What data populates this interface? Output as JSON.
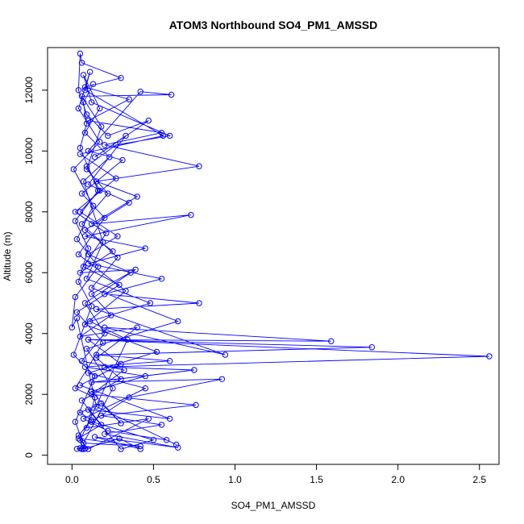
{
  "chart_data": {
    "type": "line",
    "title": "ATOM3 Northbound SO4_PM1_AMSSD",
    "xlabel": "SO4_PM1_AMSSD",
    "ylabel": "Altitude (m)",
    "xlim": [
      -0.15,
      2.62
    ],
    "ylim": [
      -300,
      13400
    ],
    "xticks": [
      0.0,
      0.5,
      1.0,
      1.5,
      2.0,
      2.5
    ],
    "xtick_labels": [
      "0.0",
      "0.5",
      "1.0",
      "1.5",
      "2.0",
      "2.5"
    ],
    "yticks": [
      0,
      2000,
      4000,
      6000,
      8000,
      10000,
      12000
    ],
    "ytick_labels": [
      "0",
      "2000",
      "4000",
      "6000",
      "8000",
      "10000",
      "12000"
    ],
    "series": [
      {
        "color": "#0000ff",
        "marker": "open-circle",
        "points": [
          [
            0.06,
            200
          ],
          [
            0.03,
            210
          ],
          [
            0.05,
            230
          ],
          [
            0.08,
            220
          ],
          [
            0.07,
            200
          ],
          [
            0.04,
            650
          ],
          [
            0.12,
            1150
          ],
          [
            0.05,
            1400
          ],
          [
            0.18,
            1700
          ],
          [
            0.3,
            1050
          ],
          [
            0.12,
            2100
          ],
          [
            0.45,
            2600
          ],
          [
            0.08,
            2900
          ],
          [
            0.6,
            3100
          ],
          [
            0.15,
            3300
          ],
          [
            1.84,
            3550
          ],
          [
            0.1,
            3800
          ],
          [
            2.56,
            3250
          ],
          [
            0.2,
            2900
          ],
          [
            0.75,
            2800
          ],
          [
            0.12,
            2400
          ],
          [
            0.92,
            2500
          ],
          [
            0.35,
            1900
          ],
          [
            0.12,
            1100
          ],
          [
            0.5,
            500
          ],
          [
            0.3,
            200
          ],
          [
            0.1,
            1500
          ],
          [
            0.6,
            1200
          ],
          [
            0.05,
            2300
          ],
          [
            0.3,
            3000
          ],
          [
            0.1,
            3800
          ],
          [
            1.59,
            3750
          ],
          [
            0.2,
            4200
          ],
          [
            0.94,
            3300
          ],
          [
            0.15,
            4800
          ],
          [
            0.78,
            5000
          ],
          [
            0.2,
            5300
          ],
          [
            0.55,
            5800
          ],
          [
            0.1,
            6300
          ],
          [
            0.45,
            6800
          ],
          [
            0.08,
            7200
          ],
          [
            0.73,
            7900
          ],
          [
            0.12,
            7600
          ],
          [
            0.4,
            8500
          ],
          [
            0.15,
            9000
          ],
          [
            0.78,
            9500
          ],
          [
            0.2,
            10200
          ],
          [
            0.55,
            10600
          ],
          [
            0.1,
            11000
          ],
          [
            0.35,
            11700
          ],
          [
            0.08,
            12100
          ],
          [
            0.3,
            12400
          ],
          [
            0.06,
            12900
          ],
          [
            0.05,
            13200
          ],
          [
            0.04,
            12000
          ],
          [
            0.09,
            11200
          ],
          [
            0.22,
            10500
          ],
          [
            0.47,
            11000
          ],
          [
            0.14,
            9800
          ],
          [
            0.33,
            10500
          ],
          [
            0.1,
            8900
          ],
          [
            0.35,
            8300
          ],
          [
            0.08,
            7400
          ],
          [
            0.25,
            6700
          ],
          [
            0.05,
            6000
          ],
          [
            0.39,
            6100
          ],
          [
            0.12,
            5300
          ],
          [
            0.24,
            4600
          ],
          [
            0.05,
            3900
          ],
          [
            0.4,
            4200
          ],
          [
            0.15,
            3200
          ],
          [
            0.3,
            2500
          ],
          [
            0.06,
            1800
          ],
          [
            0.18,
            1000
          ],
          [
            0.04,
            550
          ],
          [
            0.42,
            300
          ],
          [
            0.07,
            400
          ],
          [
            0.25,
            2200
          ],
          [
            0.09,
            3500
          ],
          [
            0.65,
            4400
          ],
          [
            0.12,
            5500
          ],
          [
            0.28,
            6500
          ],
          [
            0.06,
            7600
          ],
          [
            0.22,
            8600
          ],
          [
            0.09,
            9400
          ],
          [
            0.18,
            10800
          ],
          [
            0.06,
            11800
          ],
          [
            0.61,
            11850
          ],
          [
            0.42,
            11950
          ],
          [
            0.1,
            10000
          ],
          [
            0.31,
            9700
          ],
          [
            0.06,
            8600
          ],
          [
            0.2,
            7800
          ],
          [
            0.04,
            6600
          ],
          [
            0.33,
            5400
          ],
          [
            0.08,
            4300
          ],
          [
            0.52,
            3400
          ],
          [
            0.1,
            2700
          ],
          [
            0.45,
            2200
          ],
          [
            0.07,
            1200
          ],
          [
            0.22,
            800
          ],
          [
            0.58,
            500
          ],
          [
            0.64,
            350
          ],
          [
            0.15,
            1600
          ],
          [
            0.03,
            4500
          ],
          [
            0.0,
            4200
          ],
          [
            0.02,
            5200
          ],
          [
            0.16,
            6200
          ],
          [
            0.03,
            7100
          ],
          [
            0.13,
            8200
          ],
          [
            0.01,
            9400
          ],
          [
            0.17,
            10300
          ],
          [
            0.04,
            11400
          ],
          [
            0.11,
            12600
          ],
          [
            0.08,
            12000
          ],
          [
            0.56,
            10500
          ],
          [
            0.05,
            9900
          ],
          [
            0.27,
            9100
          ],
          [
            0.02,
            8000
          ],
          [
            0.21,
            7300
          ],
          [
            0.07,
            6200
          ],
          [
            0.29,
            5600
          ],
          [
            0.03,
            4700
          ],
          [
            0.19,
            3700
          ],
          [
            0.02,
            2200
          ],
          [
            0.14,
            1900
          ],
          [
            0.09,
            900
          ],
          [
            0.47,
            1200
          ],
          [
            0.1,
            200
          ],
          [
            0.05,
            500
          ],
          [
            0.34,
            3800
          ],
          [
            0.11,
            4400
          ],
          [
            0.48,
            5000
          ],
          [
            0.09,
            5800
          ],
          [
            0.19,
            7000
          ],
          [
            0.07,
            9000
          ],
          [
            0.23,
            9800
          ],
          [
            0.08,
            10600
          ],
          [
            0.17,
            11400
          ],
          [
            0.07,
            12500
          ],
          [
            0.12,
            11600
          ],
          [
            0.6,
            10500
          ],
          [
            0.27,
            10200
          ],
          [
            0.09,
            9500
          ],
          [
            0.17,
            8700
          ],
          [
            0.05,
            8000
          ],
          [
            0.28,
            7200
          ],
          [
            0.1,
            6600
          ],
          [
            0.36,
            6000
          ],
          [
            0.08,
            5000
          ],
          [
            0.2,
            4000
          ],
          [
            0.06,
            3100
          ],
          [
            0.32,
            2800
          ],
          [
            0.12,
            2000
          ],
          [
            0.76,
            1650
          ],
          [
            0.18,
            1300
          ],
          [
            0.55,
            1000
          ],
          [
            0.2,
            700
          ],
          [
            0.65,
            250
          ],
          [
            0.14,
            600
          ],
          [
            0.42,
            200
          ],
          [
            0.29,
            550
          ],
          [
            0.08,
            220
          ],
          [
            0.02,
            1100
          ],
          [
            0.14,
            2600
          ],
          [
            0.01,
            3300
          ],
          [
            0.12,
            4900
          ],
          [
            0.04,
            5700
          ],
          [
            0.1,
            6800
          ],
          [
            0.02,
            7700
          ],
          [
            0.16,
            8700
          ],
          [
            0.05,
            10100
          ],
          [
            0.09,
            10900
          ],
          [
            0.07,
            11600
          ],
          [
            0.13,
            12200
          ]
        ]
      }
    ]
  }
}
